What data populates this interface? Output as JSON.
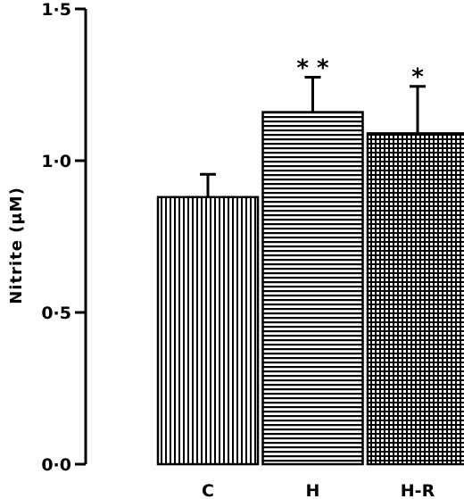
{
  "chart_data": {
    "type": "bar",
    "ylabel": "Nitrite (μM)",
    "xlabel": "",
    "ylim": [
      0,
      1.5
    ],
    "y_ticks": [
      {
        "value": 0,
        "label": "0·0"
      },
      {
        "value": 0.5,
        "label": "0·5"
      },
      {
        "value": 1.0,
        "label": "1·0"
      },
      {
        "value": 1.5,
        "label": "1·5"
      }
    ],
    "categories": [
      "C",
      "H",
      "H-R"
    ],
    "values": [
      0.88,
      1.16,
      1.09
    ],
    "errors": [
      0.075,
      0.115,
      0.155
    ],
    "significance": [
      "",
      "* *",
      "*"
    ],
    "patterns": [
      "vertical-lines",
      "horizontal-lines",
      "grid"
    ],
    "grid": false,
    "legend": "none"
  }
}
